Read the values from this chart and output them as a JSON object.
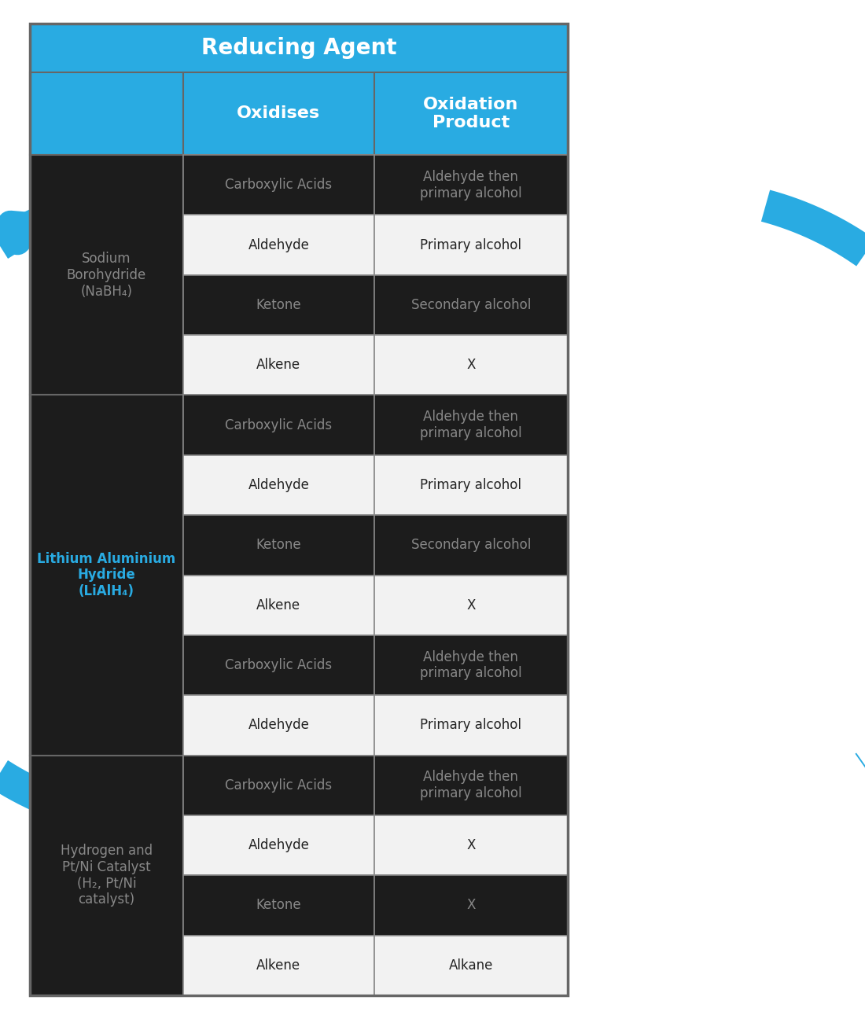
{
  "title": "Reducing Agent",
  "header_bg": "#29ABE2",
  "header_text_color": "#FFFFFF",
  "dark_row_bg": "#1C1C1C",
  "dark_row_text": "#888888",
  "light_row_bg": "#F2F2F2",
  "light_row_text": "#222222",
  "border_color": "#888888",
  "col2_header": "Oxidises",
  "col3_header": "Oxidation\nProduct",
  "arrow_color": "#29ABE2",
  "sections": [
    {
      "label": "Sodium\nBorohydride\n(NaBH₄)",
      "label_bold": false,
      "label_color": "#888888",
      "rows": [
        {
          "c1": "Carboxylic Acids",
          "c2": "Aldehyde then\nprimary alcohol",
          "light": false
        },
        {
          "c1": "Aldehyde",
          "c2": "Primary alcohol",
          "light": true
        },
        {
          "c1": "Ketone",
          "c2": "Secondary alcohol",
          "light": false
        },
        {
          "c1": "Alkene",
          "c2": "X",
          "light": true
        }
      ]
    },
    {
      "label": "Lithium Aluminium\nHydride\n(LiAlH₄)",
      "label_bold": true,
      "label_color": "#29ABE2",
      "rows": [
        {
          "c1": "Carboxylic Acids",
          "c2": "Aldehyde then\nprimary alcohol",
          "light": false
        },
        {
          "c1": "Aldehyde",
          "c2": "Primary alcohol",
          "light": true
        },
        {
          "c1": "Ketone",
          "c2": "Secondary alcohol",
          "light": false
        },
        {
          "c1": "Alkene",
          "c2": "X",
          "light": true
        },
        {
          "c1": "Carboxylic Acids",
          "c2": "Aldehyde then\nprimary alcohol",
          "light": false
        },
        {
          "c1": "Aldehyde",
          "c2": "Primary alcohol",
          "light": true
        }
      ]
    },
    {
      "label": "Hydrogen and\nPt/Ni Catalyst\n(H₂, Pt/Ni\ncatalyst)",
      "label_bold": false,
      "label_color": "#888888",
      "rows": [
        {
          "c1": "Carboxylic Acids",
          "c2": "Aldehyde then\nprimary alcohol",
          "light": false
        },
        {
          "c1": "Aldehyde",
          "c2": "X",
          "light": true
        },
        {
          "c1": "Ketone",
          "c2": "X",
          "light": false
        },
        {
          "c1": "Alkene",
          "c2": "Alkane",
          "light": true
        }
      ]
    }
  ],
  "figsize": [
    11.0,
    12.96
  ],
  "dpi": 100
}
